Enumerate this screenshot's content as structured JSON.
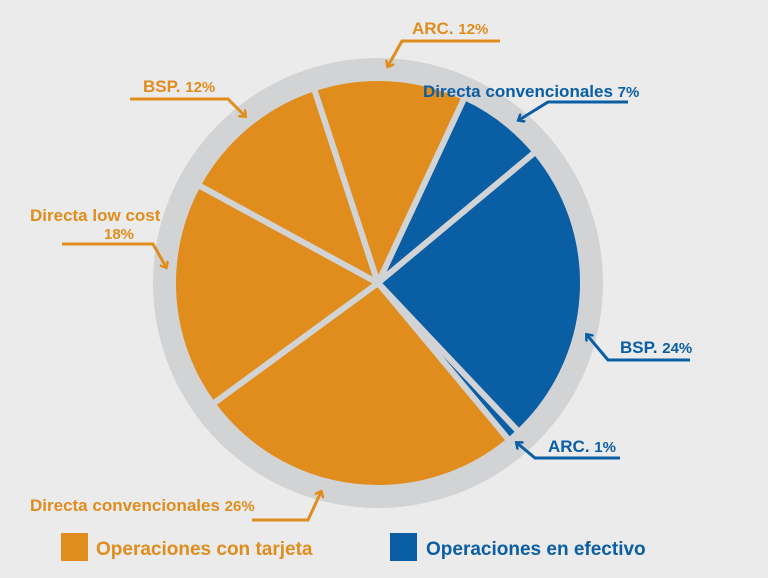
{
  "chart_data": {
    "type": "pie",
    "title": "",
    "slices": [
      {
        "label": "Directa convencionales",
        "value": 7,
        "group": "Operaciones en efectivo"
      },
      {
        "label": "BSP.",
        "value": 24,
        "group": "Operaciones en efectivo"
      },
      {
        "label": "ARC.",
        "value": 1,
        "group": "Operaciones en efectivo"
      },
      {
        "label": "Directa convencionales",
        "value": 26,
        "group": "Operaciones con tarjeta"
      },
      {
        "label": "Directa low cost",
        "value": 18,
        "group": "Operaciones con tarjeta"
      },
      {
        "label": "BSP.",
        "value": 12,
        "group": "Operaciones con tarjeta"
      },
      {
        "label": "ARC.",
        "value": 12,
        "group": "Operaciones con tarjeta"
      }
    ],
    "pct_labels": [
      "7%",
      "24%",
      "1%",
      "26%",
      "18%",
      "12%",
      "12%"
    ],
    "start_angle_deg": 25,
    "legend": [
      {
        "label": "Operaciones con tarjeta",
        "color": "#e08d1e"
      },
      {
        "label": "Operaciones en efectivo",
        "color": "#0a5ea4"
      }
    ],
    "legend_position": "bottom",
    "colors": {
      "Operaciones con tarjeta": "#e08d1e",
      "Operaciones en efectivo": "#0a5ea4",
      "ring": "#d2d3d5"
    }
  }
}
